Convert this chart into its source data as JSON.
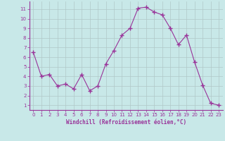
{
  "x": [
    0,
    1,
    2,
    3,
    4,
    5,
    6,
    7,
    8,
    9,
    10,
    11,
    12,
    13,
    14,
    15,
    16,
    17,
    18,
    19,
    20,
    21,
    22,
    23
  ],
  "y": [
    6.5,
    4.0,
    4.2,
    3.0,
    3.2,
    2.7,
    4.2,
    2.5,
    3.0,
    5.3,
    6.7,
    8.3,
    9.0,
    11.1,
    11.2,
    10.7,
    10.4,
    9.0,
    7.3,
    8.3,
    5.5,
    3.1,
    1.2,
    1.0
  ],
  "line_color": "#993399",
  "marker": "+",
  "marker_size": 4,
  "marker_lw": 1.0,
  "bg_color": "#c8e8e8",
  "grid_color": "#b0c8c8",
  "xlabel": "Windchill (Refroidissement éolien,°C)",
  "xlabel_color": "#993399",
  "tick_color": "#993399",
  "axis_color": "#993399",
  "ylim": [
    0.5,
    11.8
  ],
  "xlim": [
    -0.5,
    23.5
  ],
  "yticks": [
    1,
    2,
    3,
    4,
    5,
    6,
    7,
    8,
    9,
    10,
    11
  ],
  "xticks": [
    0,
    1,
    2,
    3,
    4,
    5,
    6,
    7,
    8,
    9,
    10,
    11,
    12,
    13,
    14,
    15,
    16,
    17,
    18,
    19,
    20,
    21,
    22,
    23
  ],
  "tick_fontsize": 5.0,
  "xlabel_fontsize": 5.5
}
